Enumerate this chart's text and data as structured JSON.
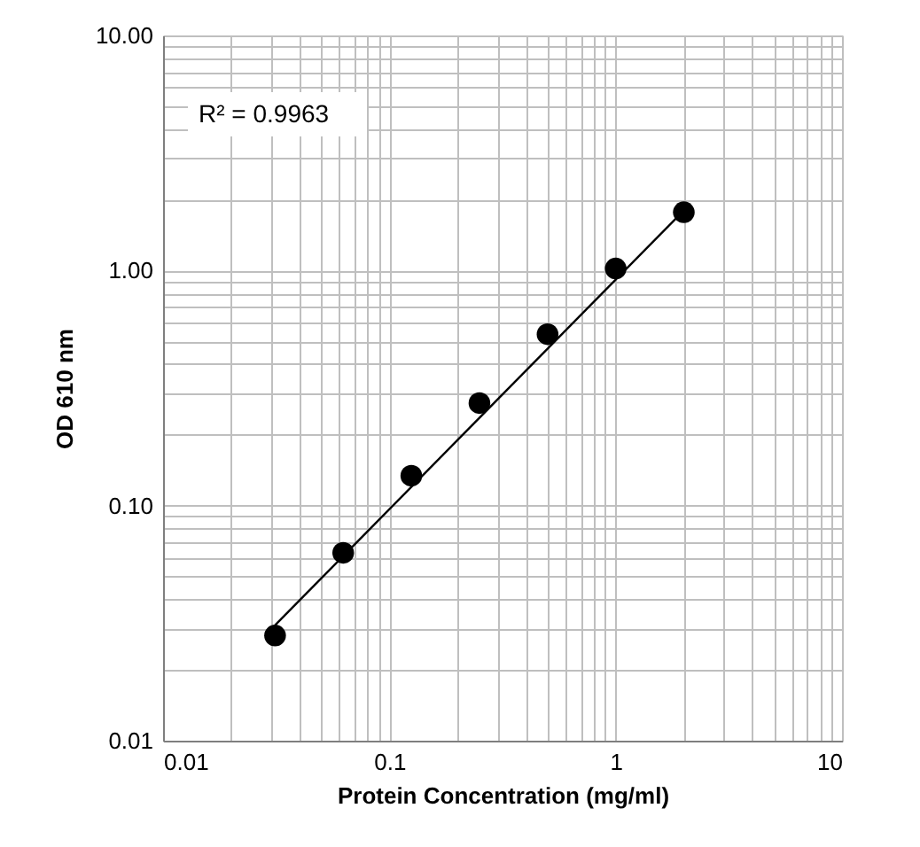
{
  "chart_data": {
    "type": "scatter",
    "xlabel": "Protein Concentration (mg/ml)",
    "ylabel": "OD 610 nm",
    "log": "xy",
    "grid": true,
    "marker": "circle",
    "line_style": "solid",
    "xlim": [
      0.01,
      10
    ],
    "ylim": [
      0.01,
      10
    ],
    "xticks": [
      0.01,
      {
        "value": 0.02,
        "label": null
      },
      {
        "value": 0.03,
        "label": null
      },
      {
        "value": 0.04,
        "label": null
      },
      {
        "value": 0.05,
        "label": null
      },
      {
        "value": 0.06,
        "label": null
      },
      {
        "value": 0.07,
        "label": null
      },
      {
        "value": 0.08,
        "label": null
      },
      {
        "value": 0.09,
        "label": null
      },
      0.1,
      {
        "value": 0.2,
        "label": null
      },
      {
        "value": 0.3,
        "label": null
      },
      {
        "value": 0.4,
        "label": null
      },
      {
        "value": 0.5,
        "label": null
      },
      {
        "value": 0.6,
        "label": null
      },
      {
        "value": 0.7,
        "label": null
      },
      {
        "value": 0.8,
        "label": null
      },
      {
        "value": 0.9,
        "label": null
      },
      1,
      {
        "value": 2,
        "label": null
      },
      {
        "value": 3,
        "label": null
      },
      {
        "value": 4,
        "label": null
      },
      {
        "value": 5,
        "label": null
      },
      {
        "value": 6,
        "label": null
      },
      {
        "value": 7,
        "label": null
      },
      {
        "value": 8,
        "label": null
      },
      {
        "value": 9,
        "label": null
      },
      10
    ],
    "yticks": [
      {
        "value": 0.01,
        "label": "0.01"
      },
      {
        "value": 0.02,
        "label": null
      },
      {
        "value": 0.03,
        "label": null
      },
      {
        "value": 0.04,
        "label": null
      },
      {
        "value": 0.05,
        "label": null
      },
      {
        "value": 0.06,
        "label": null
      },
      {
        "value": 0.07,
        "label": null
      },
      {
        "value": 0.08,
        "label": null
      },
      {
        "value": 0.09,
        "label": null
      },
      {
        "value": 0.1,
        "label": "0.10"
      },
      {
        "value": 0.2,
        "label": null
      },
      {
        "value": 0.3,
        "label": null
      },
      {
        "value": 0.4,
        "label": null
      },
      {
        "value": 0.5,
        "label": null
      },
      {
        "value": 0.6,
        "label": null
      },
      {
        "value": 0.7,
        "label": null
      },
      {
        "value": 0.8,
        "label": null
      },
      {
        "value": 0.9,
        "label": null
      },
      {
        "value": 1,
        "label": "1.00"
      },
      {
        "value": 2,
        "label": null
      },
      {
        "value": 3,
        "label": null
      },
      {
        "value": 4,
        "label": null
      },
      {
        "value": 5,
        "label": null
      },
      {
        "value": 6,
        "label": null
      },
      {
        "value": 7,
        "label": null
      },
      {
        "value": 8,
        "label": null
      },
      {
        "value": 9,
        "label": null
      },
      {
        "value": 10,
        "label": "10.00"
      }
    ],
    "annotations": [
      "R² = 0.9963"
    ],
    "series": [
      {
        "color": "#000000",
        "x": [
          0.03125,
          0.0625,
          0.125,
          0.25,
          0.5,
          1,
          2
        ],
        "values": [
          0.028,
          0.063,
          0.134,
          0.273,
          0.536,
          1.02,
          1.77
        ]
      },
      {
        "type": "line",
        "color": "#000000",
        "marker": "none",
        "x": [
          0.03125,
          2
        ],
        "values": [
          0.031,
          1.8
        ]
      }
    ]
  }
}
